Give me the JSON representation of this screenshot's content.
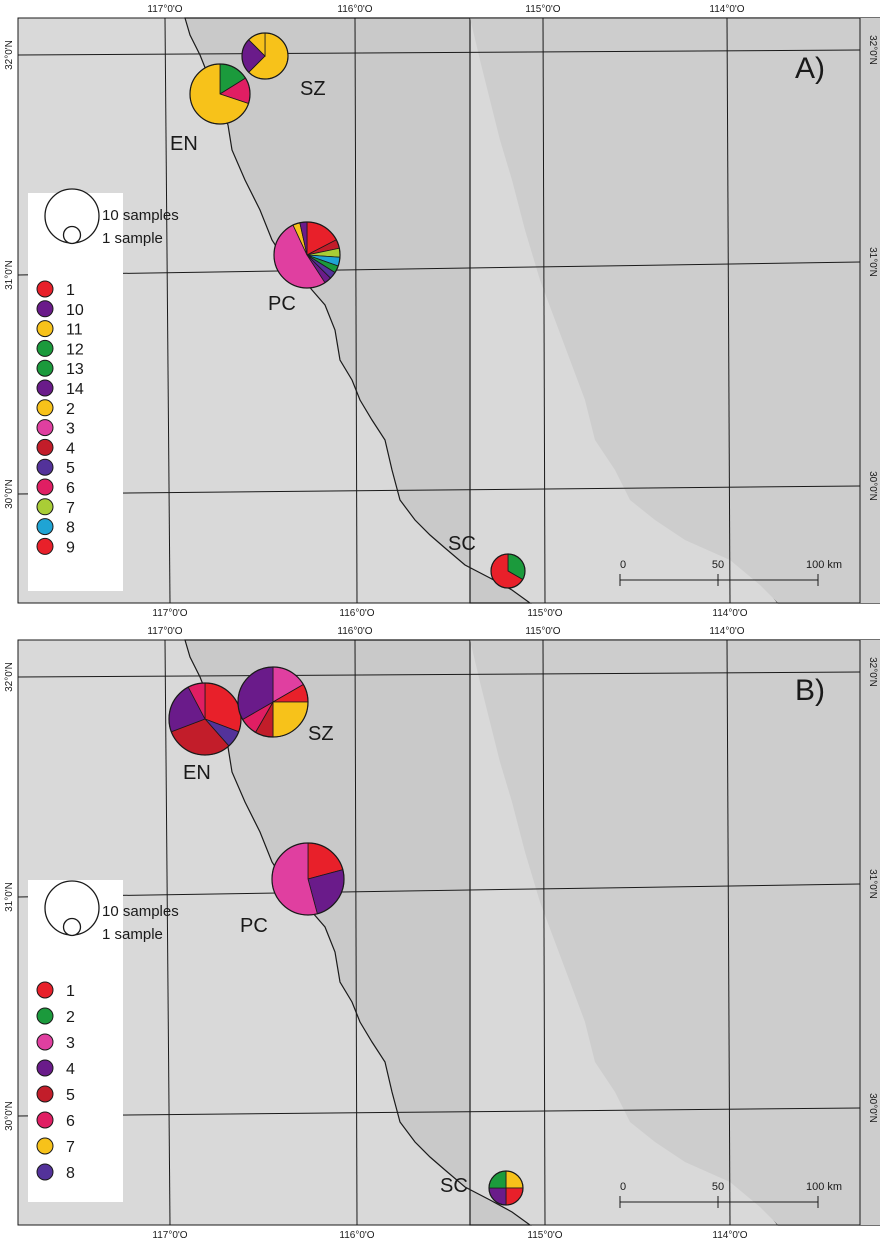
{
  "colors": {
    "sea": "#d9d9d9",
    "land": "#c9c9c9",
    "grid": "#2b2b2b",
    "palette_A": {
      "1": "#e8202a",
      "10": "#6a1b8a",
      "11": "#f7c21a",
      "12": "#1b9a3c",
      "13": "#1b9a3c",
      "14": "#6a1b8a",
      "2": "#f7c21a",
      "3": "#e03fa0",
      "4": "#c21d2a",
      "5": "#53329a",
      "6": "#e01e63",
      "7": "#a9cd36",
      "8": "#1fa4d4",
      "9": "#e8202a"
    },
    "palette_B": {
      "1": "#e8202a",
      "2": "#1b9a3c",
      "3": "#e03fa0",
      "4": "#6a1b8a",
      "5": "#c21d2a",
      "6": "#e01e63",
      "7": "#f7c21a",
      "8": "#53329a"
    }
  },
  "panels": [
    {
      "label": "A)",
      "top_ticks": [
        "117°0'O",
        "116°0'O",
        "115°0'O",
        "114°0'O"
      ],
      "bottom_ticks": [
        "117°0'O",
        "116°0'O",
        "115°0'O",
        "114°0'O"
      ],
      "left_ticks": [
        "32°0'N",
        "31°0'N",
        "30°0'N"
      ],
      "right_ticks": [
        "32°0'N",
        "31°0'N",
        "30°0'N"
      ],
      "size_legend": {
        "large": "10 samples",
        "small": "1 sample"
      },
      "legend": [
        "1",
        "10",
        "11",
        "12",
        "13",
        "14",
        "2",
        "3",
        "4",
        "5",
        "6",
        "7",
        "8",
        "9"
      ],
      "scale": {
        "labels": [
          "0",
          "50",
          "100 km"
        ]
      },
      "sites": [
        {
          "name": "SZ",
          "slices": [
            [
              "11",
              5
            ],
            [
              "10",
              2
            ],
            [
              "2",
              1
            ]
          ]
        },
        {
          "name": "EN",
          "slices": [
            [
              "12",
              1.5
            ],
            [
              "6",
              1.3
            ],
            [
              "11",
              6.5
            ]
          ]
        },
        {
          "name": "PC",
          "slices": [
            [
              "1",
              4
            ],
            [
              "4",
              1
            ],
            [
              "7",
              1
            ],
            [
              "8",
              1
            ],
            [
              "12",
              0.8
            ],
            [
              "5",
              0.8
            ],
            [
              "14",
              0.8
            ],
            [
              "3",
              12
            ],
            [
              "2",
              0.8
            ],
            [
              "10",
              0.8
            ]
          ]
        },
        {
          "name": "SC",
          "slices": [
            [
              "13",
              1
            ],
            [
              "1",
              2
            ]
          ]
        }
      ]
    },
    {
      "label": "B)",
      "top_ticks": [
        "117°0'O",
        "116°0'O",
        "115°0'O",
        "114°0'O"
      ],
      "bottom_ticks": [
        "117°0'O",
        "116°0'O",
        "115°0'O",
        "114°0'O"
      ],
      "left_ticks": [
        "32°0'N",
        "31°0'N",
        "30°0'N"
      ],
      "right_ticks": [
        "32°0'N",
        "31°0'N",
        "30°0'N"
      ],
      "size_legend": {
        "large": "10 samples",
        "small": "1 sample"
      },
      "legend": [
        "1",
        "2",
        "3",
        "4",
        "5",
        "6",
        "7",
        "8"
      ],
      "scale": {
        "labels": [
          "0",
          "50",
          "100 km"
        ]
      },
      "sites": [
        {
          "name": "EN",
          "slices": [
            [
              "1",
              4
            ],
            [
              "8",
              1
            ],
            [
              "5",
              4
            ],
            [
              "4",
              3
            ],
            [
              "6",
              1
            ]
          ]
        },
        {
          "name": "SZ",
          "slices": [
            [
              "3",
              2
            ],
            [
              "1",
              1
            ],
            [
              "7",
              3
            ],
            [
              "5",
              1
            ],
            [
              "6",
              1
            ],
            [
              "4",
              4
            ]
          ]
        },
        {
          "name": "PC",
          "slices": [
            [
              "1",
              2.5
            ],
            [
              "4",
              3
            ],
            [
              "3",
              6.5
            ]
          ]
        },
        {
          "name": "SC",
          "slices": [
            [
              "7",
              1
            ],
            [
              "1",
              1
            ],
            [
              "4",
              1
            ],
            [
              "2",
              1
            ]
          ]
        }
      ]
    }
  ]
}
